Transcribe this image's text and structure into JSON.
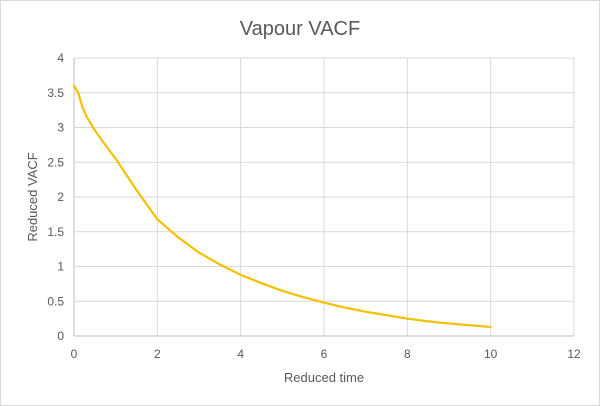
{
  "chart_data": {
    "type": "line",
    "title": "Vapour VACF",
    "xlabel": "Reduced time",
    "ylabel": "Reduced VACF",
    "xlim": [
      0,
      12
    ],
    "ylim": [
      0,
      4
    ],
    "x_ticks": [
      0,
      2,
      4,
      6,
      8,
      10,
      12
    ],
    "y_ticks": [
      0,
      0.5,
      1,
      1.5,
      2,
      2.5,
      3,
      3.5,
      4
    ],
    "grid": true,
    "legend": "none",
    "series": [
      {
        "color": "#f5c000",
        "x": [
          0,
          0.1,
          0.2,
          0.3,
          0.5,
          0.75,
          1,
          1.5,
          2,
          2.5,
          3,
          3.5,
          4,
          4.5,
          5,
          5.5,
          6,
          6.5,
          7,
          7.5,
          8,
          8.5,
          9,
          9.5,
          10
        ],
        "y": [
          3.6,
          3.5,
          3.3,
          3.16,
          2.96,
          2.75,
          2.55,
          2.1,
          1.68,
          1.42,
          1.2,
          1.03,
          0.88,
          0.76,
          0.65,
          0.56,
          0.48,
          0.41,
          0.35,
          0.3,
          0.25,
          0.21,
          0.18,
          0.155,
          0.13
        ]
      }
    ]
  }
}
